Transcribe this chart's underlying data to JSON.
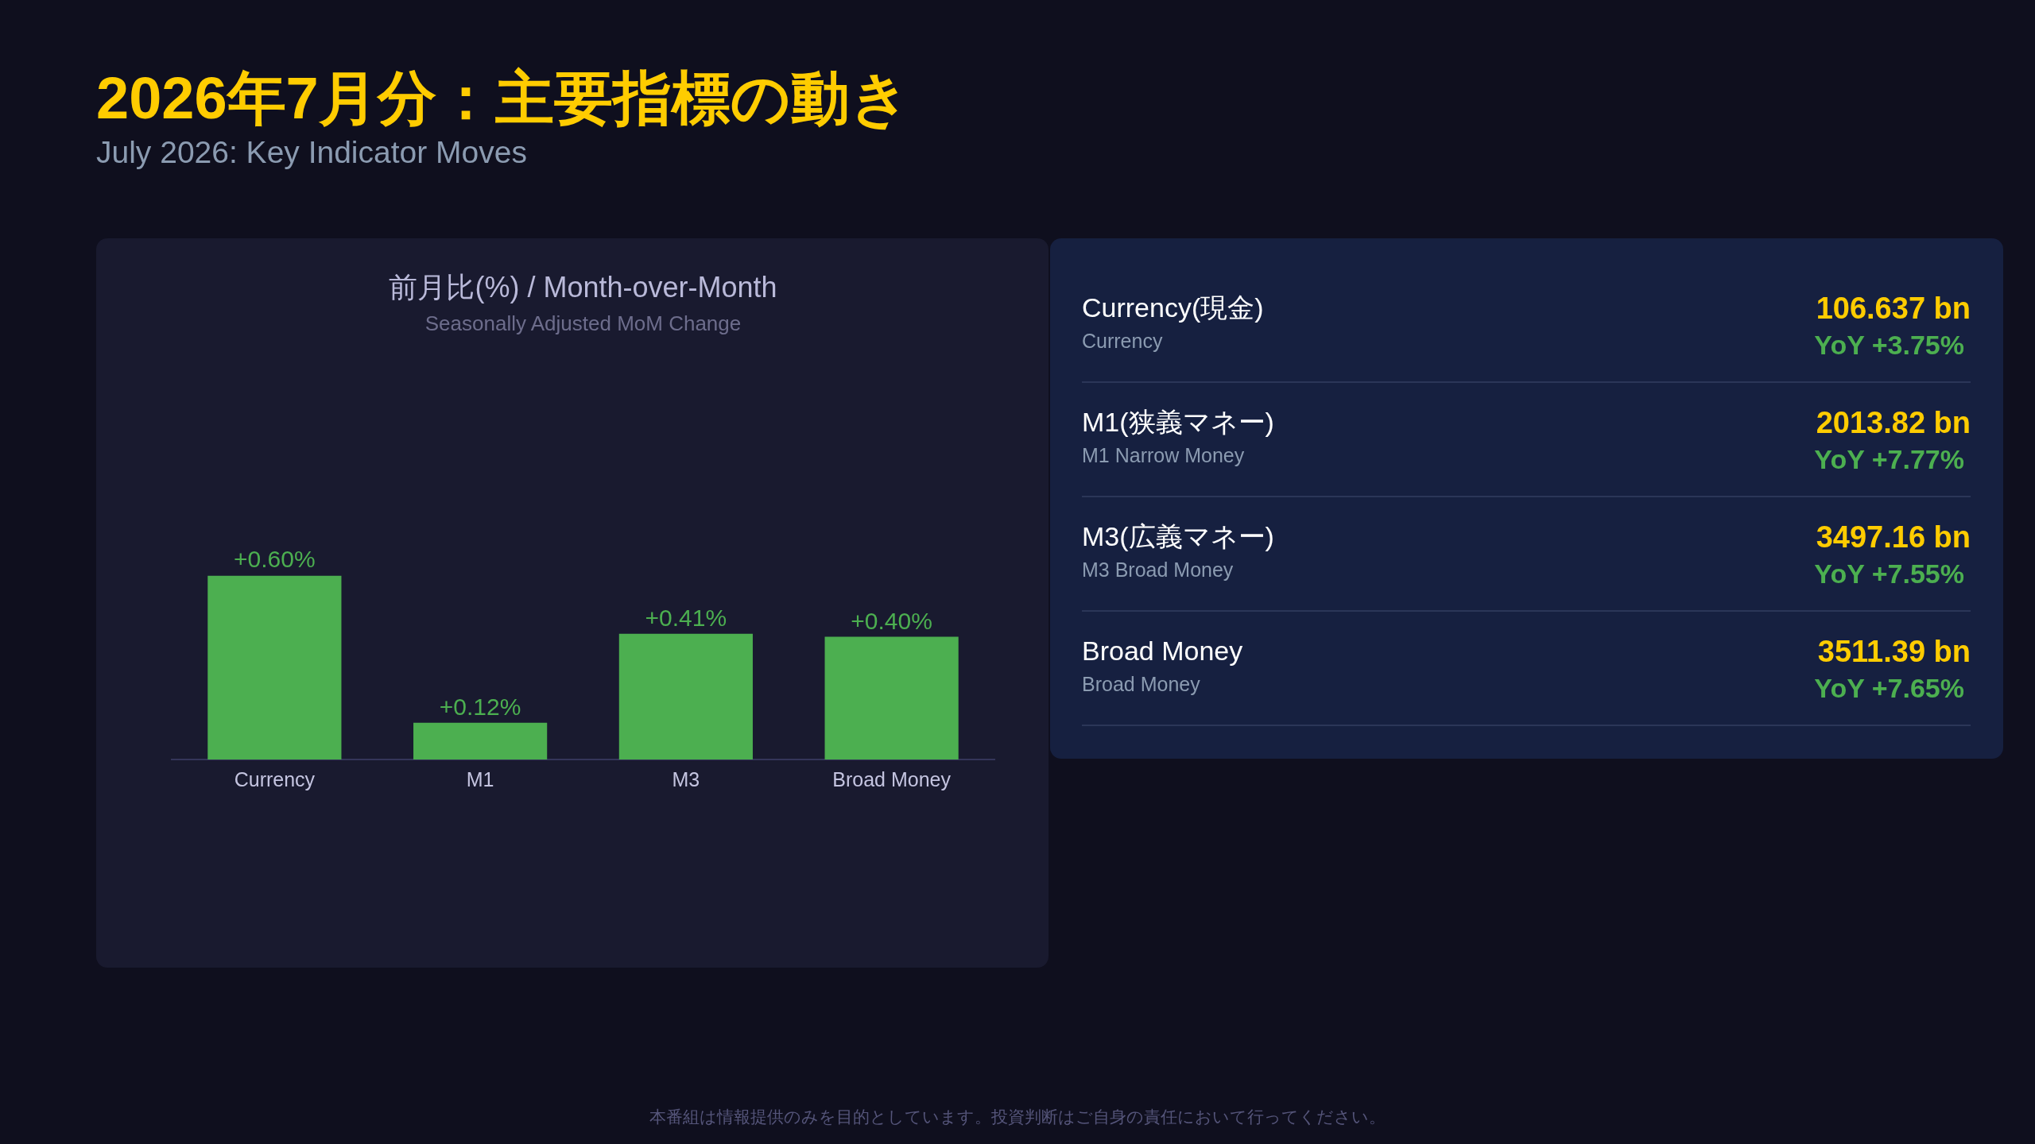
{
  "chart_data": [
    {
      "type": "other",
      "title": "2026年7月分：主要指標の動き",
      "subtitle": "July 2026: Key Indicator Moves",
      "annotations": [
        "本番組は情報提供のみを目的としています。投資判断はご自身の責任において行ってください。"
      ]
    },
    {
      "type": "bar",
      "title": "前月比(%) / Month-over-Month",
      "subtitle": "Seasonally Adjusted MoM Change",
      "categories": [
        "Currency",
        "M1",
        "M3",
        "Broad Money"
      ],
      "values": [
        0.6,
        0.12,
        0.41,
        0.4
      ],
      "value_labels": [
        "+0.60%",
        "+0.12%",
        "+0.41%",
        "+0.40%"
      ],
      "color": "#4caf50",
      "tick_labels": "x"
    },
    {
      "type": "other",
      "annotations": [
        "Currency(現金)",
        "Currency",
        "106.637 bn",
        "YoY +3.75%",
        "M1(狭義マネー)",
        "M1 Narrow Money",
        "2013.82 bn",
        "YoY +7.77%",
        "M3(広義マネー)",
        "M3 Broad Money",
        "3497.16 bn",
        "YoY +7.55%",
        "Broad Money",
        "Broad Money",
        "3511.39 bn",
        "YoY +7.65%"
      ]
    }
  ]
}
